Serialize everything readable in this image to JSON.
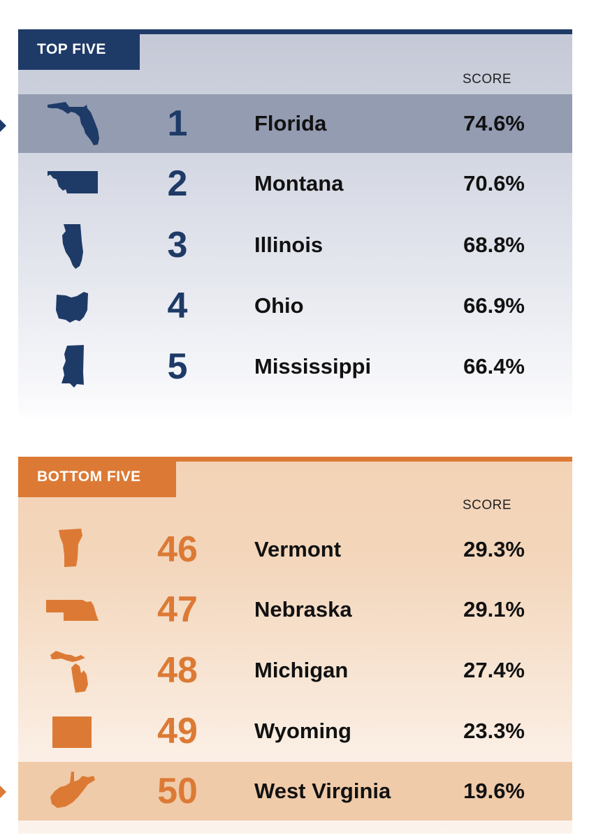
{
  "top_five": {
    "title": "TOP FIVE",
    "score_header": "SCORE",
    "color": "#1e3a67",
    "rows": [
      {
        "rank": "1",
        "state": "Florida",
        "score": "74.6%",
        "icon": "florida-icon",
        "highlighted": true
      },
      {
        "rank": "2",
        "state": "Montana",
        "score": "70.6%",
        "icon": "montana-icon",
        "highlighted": false
      },
      {
        "rank": "3",
        "state": "Illinois",
        "score": "68.8%",
        "icon": "illinois-icon",
        "highlighted": false
      },
      {
        "rank": "4",
        "state": "Ohio",
        "score": "66.9%",
        "icon": "ohio-icon",
        "highlighted": false
      },
      {
        "rank": "5",
        "state": "Mississippi",
        "score": "66.4%",
        "icon": "mississippi-icon",
        "highlighted": false
      }
    ]
  },
  "bottom_five": {
    "title": "BOTTOM FIVE",
    "score_header": "SCORE",
    "color": "#dc7a35",
    "rows": [
      {
        "rank": "46",
        "state": "Vermont",
        "score": "29.3%",
        "icon": "vermont-icon",
        "highlighted": false
      },
      {
        "rank": "47",
        "state": "Nebraska",
        "score": "29.1%",
        "icon": "nebraska-icon",
        "highlighted": false
      },
      {
        "rank": "48",
        "state": "Michigan",
        "score": "27.4%",
        "icon": "michigan-icon",
        "highlighted": false
      },
      {
        "rank": "49",
        "state": "Wyoming",
        "score": "23.3%",
        "icon": "wyoming-icon",
        "highlighted": false
      },
      {
        "rank": "50",
        "state": "West Virginia",
        "score": "19.6%",
        "icon": "west-virginia-icon",
        "highlighted": true
      }
    ]
  }
}
